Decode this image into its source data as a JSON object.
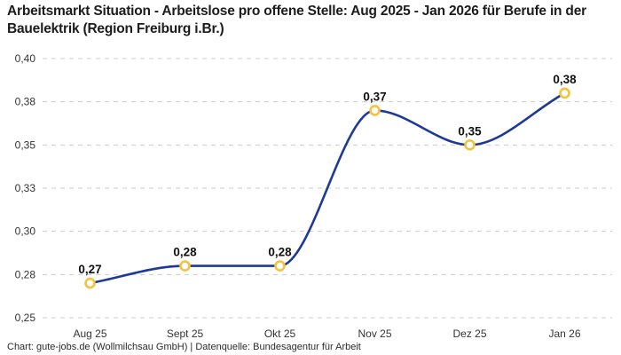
{
  "title": "Arbeitsmarkt Situation - Arbeitslose pro offene Stelle: Aug 2025 - Jan 2026 für Berufe in der Bauelektrik (Region Freiburg i.Br.)",
  "footer": "Chart: gute-jobs.de (Wollmilchsau GmbH) | Datenquelle: Bundesagentur für Arbeit",
  "colors": {
    "line": "#1e3a96",
    "marker_stroke": "#f5c33b",
    "marker_fill": "#ffffff",
    "grid": "#cccccc",
    "title_text": "#1c1c1c",
    "axis_text": "#333333",
    "point_label_text": "#111111"
  },
  "chart_data": {
    "type": "line",
    "title": "Arbeitsmarkt Situation - Arbeitslose pro offene Stelle: Aug 2025 - Jan 2026 für Berufe in der Bauelektrik (Region Freiburg i.Br.)",
    "categories": [
      "Aug 25",
      "Sept 25",
      "Okt 25",
      "Nov 25",
      "Dez 25",
      "Jan 26"
    ],
    "values": [
      0.27,
      0.28,
      0.28,
      0.37,
      0.35,
      0.38
    ],
    "point_labels": [
      "0,27",
      "0,28",
      "0,28",
      "0,37",
      "0,35",
      "0,38"
    ],
    "xlabel": "",
    "ylabel": "",
    "ylim": [
      0.25,
      0.4
    ],
    "y_ticks": [
      {
        "value": 0.25,
        "label": "0,25"
      },
      {
        "value": 0.275,
        "label": "0,28"
      },
      {
        "value": 0.3,
        "label": "0,30"
      },
      {
        "value": 0.325,
        "label": "0,33"
      },
      {
        "value": 0.35,
        "label": "0,35"
      },
      {
        "value": 0.375,
        "label": "0,38"
      },
      {
        "value": 0.4,
        "label": "0,40"
      }
    ],
    "grid": "horizontal-dashed",
    "legend": "none"
  }
}
